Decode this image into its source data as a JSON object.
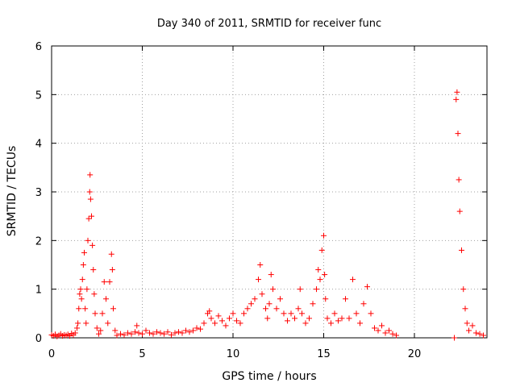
{
  "chart_data": {
    "type": "scatter",
    "title": "Day 340 of 2011, SRMTID for receiver func",
    "xlabel": "GPS time / hours",
    "ylabel": "SRMTID / TECUs",
    "xlim": [
      0,
      24
    ],
    "ylim": [
      0,
      6
    ],
    "xticks": [
      0,
      5,
      10,
      15,
      20
    ],
    "yticks": [
      0,
      1,
      2,
      3,
      4,
      5,
      6
    ],
    "grid": true,
    "marker": "+",
    "color": "#ff0000",
    "series": [
      {
        "name": "SRMTID",
        "points": [
          [
            0.0,
            0.06
          ],
          [
            0.1,
            0.04
          ],
          [
            0.2,
            0.07
          ],
          [
            0.3,
            0.03
          ],
          [
            0.4,
            0.05
          ],
          [
            0.5,
            0.08
          ],
          [
            0.6,
            0.04
          ],
          [
            0.7,
            0.06
          ],
          [
            0.8,
            0.05
          ],
          [
            0.9,
            0.07
          ],
          [
            1.0,
            0.04
          ],
          [
            1.1,
            0.09
          ],
          [
            1.2,
            0.06
          ],
          [
            1.3,
            0.1
          ],
          [
            1.4,
            0.2
          ],
          [
            1.45,
            0.3
          ],
          [
            1.5,
            0.6
          ],
          [
            1.55,
            0.9
          ],
          [
            1.6,
            1.0
          ],
          [
            1.65,
            0.8
          ],
          [
            1.7,
            1.2
          ],
          [
            1.75,
            1.5
          ],
          [
            1.8,
            1.75
          ],
          [
            1.85,
            0.6
          ],
          [
            1.9,
            0.3
          ],
          [
            1.95,
            1.0
          ],
          [
            2.0,
            2.0
          ],
          [
            2.05,
            2.45
          ],
          [
            2.1,
            3.0
          ],
          [
            2.12,
            3.35
          ],
          [
            2.15,
            2.85
          ],
          [
            2.2,
            2.5
          ],
          [
            2.25,
            1.9
          ],
          [
            2.3,
            1.4
          ],
          [
            2.35,
            0.9
          ],
          [
            2.4,
            0.5
          ],
          [
            2.5,
            0.2
          ],
          [
            2.6,
            0.08
          ],
          [
            2.7,
            0.15
          ],
          [
            2.8,
            0.5
          ],
          [
            2.9,
            1.15
          ],
          [
            3.0,
            0.8
          ],
          [
            3.1,
            0.3
          ],
          [
            3.2,
            1.15
          ],
          [
            3.3,
            1.72
          ],
          [
            3.35,
            1.4
          ],
          [
            3.4,
            0.6
          ],
          [
            3.5,
            0.15
          ],
          [
            3.6,
            0.05
          ],
          [
            3.8,
            0.08
          ],
          [
            4.0,
            0.06
          ],
          [
            4.2,
            0.1
          ],
          [
            4.4,
            0.08
          ],
          [
            4.6,
            0.12
          ],
          [
            4.7,
            0.25
          ],
          [
            4.8,
            0.1
          ],
          [
            5.0,
            0.08
          ],
          [
            5.2,
            0.15
          ],
          [
            5.4,
            0.1
          ],
          [
            5.6,
            0.08
          ],
          [
            5.8,
            0.12
          ],
          [
            6.0,
            0.1
          ],
          [
            6.2,
            0.08
          ],
          [
            6.4,
            0.12
          ],
          [
            6.6,
            0.06
          ],
          [
            6.8,
            0.1
          ],
          [
            7.0,
            0.12
          ],
          [
            7.2,
            0.1
          ],
          [
            7.4,
            0.15
          ],
          [
            7.6,
            0.12
          ],
          [
            7.8,
            0.15
          ],
          [
            8.0,
            0.2
          ],
          [
            8.2,
            0.18
          ],
          [
            8.4,
            0.3
          ],
          [
            8.6,
            0.5
          ],
          [
            8.7,
            0.55
          ],
          [
            8.8,
            0.4
          ],
          [
            9.0,
            0.3
          ],
          [
            9.2,
            0.45
          ],
          [
            9.4,
            0.35
          ],
          [
            9.6,
            0.25
          ],
          [
            9.8,
            0.4
          ],
          [
            10.0,
            0.5
          ],
          [
            10.2,
            0.35
          ],
          [
            10.4,
            0.3
          ],
          [
            10.6,
            0.5
          ],
          [
            10.8,
            0.6
          ],
          [
            11.0,
            0.7
          ],
          [
            11.2,
            0.8
          ],
          [
            11.4,
            1.2
          ],
          [
            11.5,
            1.5
          ],
          [
            11.6,
            0.9
          ],
          [
            11.8,
            0.6
          ],
          [
            11.9,
            0.4
          ],
          [
            12.0,
            0.7
          ],
          [
            12.1,
            1.3
          ],
          [
            12.2,
            1.0
          ],
          [
            12.4,
            0.6
          ],
          [
            12.6,
            0.8
          ],
          [
            12.8,
            0.5
          ],
          [
            13.0,
            0.35
          ],
          [
            13.2,
            0.5
          ],
          [
            13.4,
            0.4
          ],
          [
            13.6,
            0.6
          ],
          [
            13.7,
            1.0
          ],
          [
            13.8,
            0.5
          ],
          [
            14.0,
            0.3
          ],
          [
            14.2,
            0.4
          ],
          [
            14.4,
            0.7
          ],
          [
            14.6,
            1.0
          ],
          [
            14.7,
            1.4
          ],
          [
            14.8,
            1.2
          ],
          [
            14.9,
            1.8
          ],
          [
            15.0,
            2.1
          ],
          [
            15.05,
            1.3
          ],
          [
            15.1,
            0.8
          ],
          [
            15.2,
            0.4
          ],
          [
            15.4,
            0.3
          ],
          [
            15.6,
            0.5
          ],
          [
            15.8,
            0.35
          ],
          [
            16.0,
            0.4
          ],
          [
            16.2,
            0.8
          ],
          [
            16.4,
            0.4
          ],
          [
            16.6,
            1.2
          ],
          [
            16.8,
            0.5
          ],
          [
            17.0,
            0.3
          ],
          [
            17.2,
            0.7
          ],
          [
            17.4,
            1.05
          ],
          [
            17.6,
            0.5
          ],
          [
            17.8,
            0.2
          ],
          [
            18.0,
            0.15
          ],
          [
            18.2,
            0.25
          ],
          [
            18.4,
            0.1
          ],
          [
            18.6,
            0.15
          ],
          [
            18.8,
            0.08
          ],
          [
            19.0,
            0.05
          ],
          [
            22.2,
            0.0
          ],
          [
            22.3,
            4.9
          ],
          [
            22.35,
            5.05
          ],
          [
            22.4,
            4.2
          ],
          [
            22.45,
            3.25
          ],
          [
            22.5,
            2.6
          ],
          [
            22.6,
            1.8
          ],
          [
            22.7,
            1.0
          ],
          [
            22.8,
            0.6
          ],
          [
            22.9,
            0.3
          ],
          [
            23.0,
            0.15
          ],
          [
            23.2,
            0.25
          ],
          [
            23.4,
            0.1
          ],
          [
            23.6,
            0.08
          ],
          [
            23.8,
            0.05
          ]
        ]
      }
    ]
  }
}
